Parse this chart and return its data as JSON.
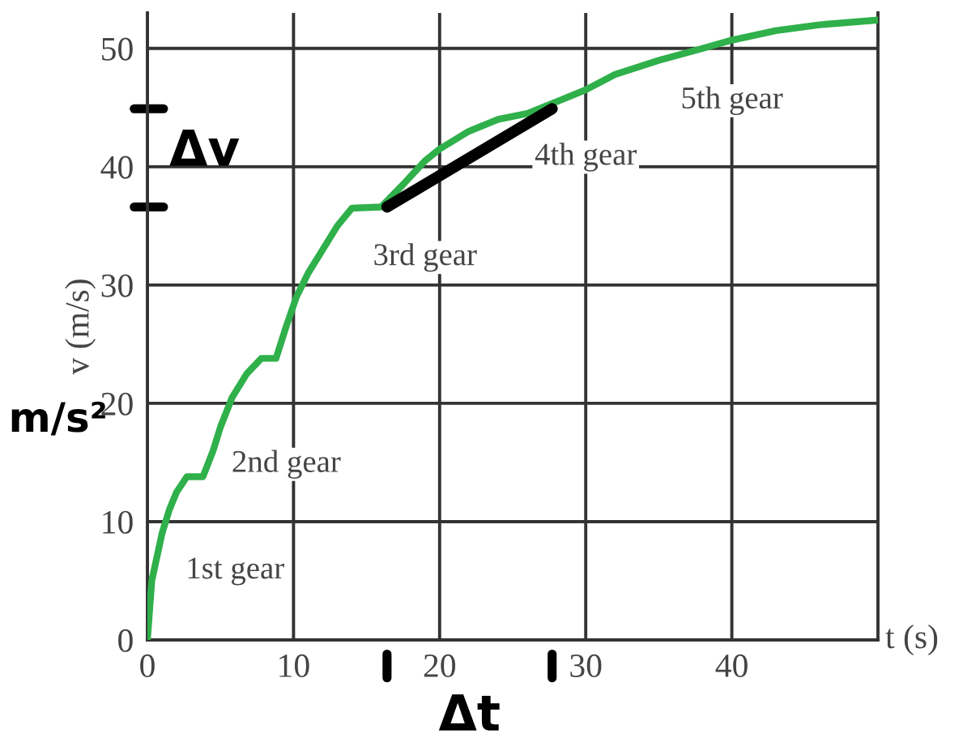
{
  "chart_data": {
    "type": "line",
    "xlabel": "t (s)",
    "ylabel": "v (m/s)",
    "xlim": [
      0,
      50
    ],
    "ylim": [
      0,
      53
    ],
    "xticks": [
      0,
      10,
      20,
      30,
      40
    ],
    "yticks": [
      0,
      10,
      20,
      30,
      40,
      50
    ],
    "grid": true,
    "legend": false,
    "series": [
      {
        "color": "#2fb04a",
        "x": [
          0,
          0.3,
          1,
          1.5,
          2,
          2.7,
          3.8,
          4.5,
          5,
          5.8,
          6.8,
          7.8,
          8.8,
          9.5,
          10.2,
          11,
          12,
          13,
          14,
          16,
          17.5,
          19,
          20,
          22,
          24,
          26,
          28,
          30,
          32,
          35,
          38,
          40,
          43,
          46,
          50
        ],
        "values": [
          0,
          5,
          9,
          11,
          12.5,
          13.8,
          13.8,
          16,
          18,
          20.5,
          22.5,
          23.8,
          23.8,
          26.5,
          29,
          31,
          33,
          35,
          36.5,
          36.6,
          38.5,
          40.5,
          41.5,
          43,
          44,
          44.5,
          45.5,
          46.5,
          47.8,
          49,
          50,
          50.7,
          51.5,
          52,
          52.4
        ]
      },
      {
        "color": "#000000",
        "x": [
          16.4,
          27.7
        ],
        "values": [
          36.6,
          44.9
        ]
      }
    ],
    "annotations": [
      "1st gear",
      "2nd gear",
      "3rd gear",
      "4th gear",
      "5th gear",
      "Δv",
      "Δt",
      "m/s²"
    ]
  }
}
